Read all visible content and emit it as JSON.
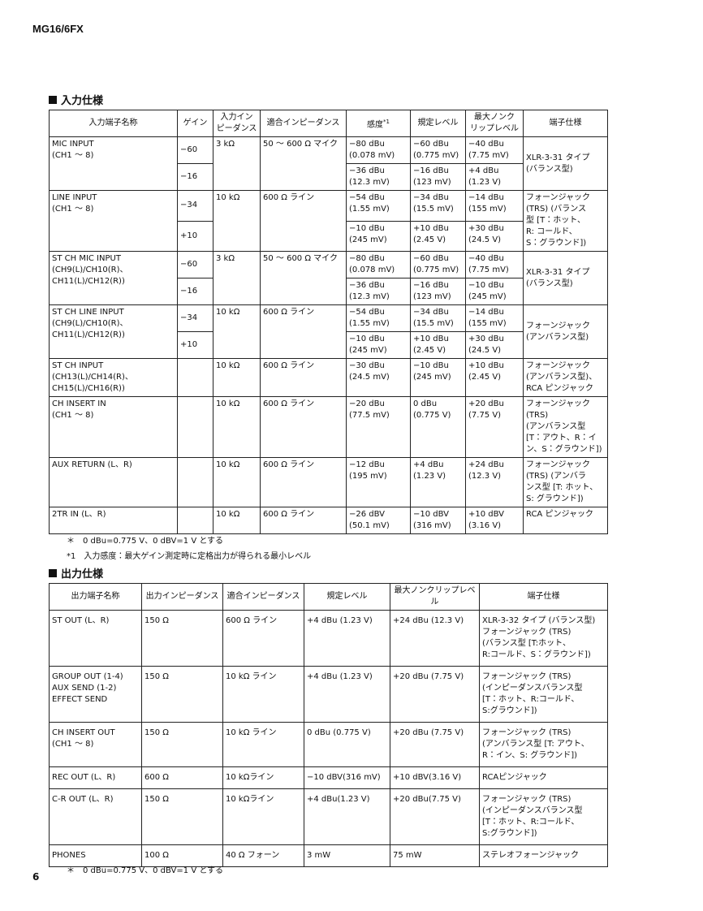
{
  "header": "MG16/6FX",
  "input_section": {
    "title": "入力仕様",
    "headers": [
      "入力端子名称",
      "ゲイン",
      "入力イン\nピーダンス",
      "適合インピーダンス",
      "感度",
      "規定レベル",
      "最大ノンク\nリップレベル",
      "端子仕様"
    ],
    "sensitivity_mark": "*1",
    "rows": [
      {
        "name": "MIC INPUT\n(CH1 ～ 8)",
        "impedance": "3 kΩ",
        "suitable": "50 ～ 600 Ω マイク",
        "connector": "XLR-3-31 タイプ\n(バランス型)",
        "levels": [
          {
            "gain": "−60",
            "sensitivity": "−80 dBu\n(0.078 mV)",
            "nominal": "−60 dBu\n(0.775 mV)",
            "max": "−40 dBu\n(7.75 mV)"
          },
          {
            "gain": "−16",
            "sensitivity": "−36 dBu\n(12.3 mV)",
            "nominal": "−16 dBu\n(123 mV)",
            "max": "+4 dBu\n(1.23 V)"
          }
        ]
      },
      {
        "name": "LINE INPUT\n(CH1 ～ 8)",
        "impedance": "10 kΩ",
        "suitable": "600 Ω ライン",
        "connector": "フォーンジャック\n(TRS) (バランス\n型 [T：ホット、\nR: コールド、\nS：グラウンド])",
        "levels": [
          {
            "gain": "−34",
            "sensitivity": "−54 dBu\n(1.55 mV)",
            "nominal": "−34 dBu\n(15.5 mV)",
            "max": "−14 dBu\n(155 mV)"
          },
          {
            "gain": "+10",
            "sensitivity": "−10 dBu\n(245 mV)",
            "nominal": "+10 dBu\n(2.45 V)",
            "max": "+30 dBu\n(24.5 V)"
          }
        ]
      },
      {
        "name": "ST CH MIC INPUT\n(CH9(L)/CH10(R)、\nCH11(L)/CH12(R))",
        "impedance": "3 kΩ",
        "suitable": "50 ～ 600 Ω マイク",
        "connector": "XLR-3-31 タイプ\n(バランス型)",
        "levels": [
          {
            "gain": "−60",
            "sensitivity": "−80 dBu\n(0.078 mV)",
            "nominal": "−60 dBu\n(0.775 mV)",
            "max": "−40 dBu\n(7.75 mV)"
          },
          {
            "gain": "−16",
            "sensitivity": "−36 dBu\n(12.3 mV)",
            "nominal": "−16 dBu\n(123 mV)",
            "max": "−10 dBu\n(245 mV)"
          }
        ]
      },
      {
        "name": "ST CH LINE INPUT\n(CH9(L)/CH10(R)、\nCH11(L)/CH12(R))",
        "impedance": "10 kΩ",
        "suitable": "600 Ω ライン",
        "connector": "フォーンジャック\n(アンバランス型)",
        "levels": [
          {
            "gain": "−34",
            "sensitivity": "−54 dBu\n(1.55 mV)",
            "nominal": "−34 dBu\n(15.5 mV)",
            "max": "−14 dBu\n(155 mV)"
          },
          {
            "gain": "+10",
            "sensitivity": "−10 dBu\n(245 mV)",
            "nominal": "+10 dBu\n(2.45 V)",
            "max": "+30 dBu\n(24.5 V)"
          }
        ]
      },
      {
        "name": "ST CH INPUT\n(CH13(L)/CH14(R)、\nCH15(L)/CH16(R))",
        "impedance": "10 kΩ",
        "suitable": "600 Ω ライン",
        "connector": "フォーンジャック\n(アンバランス型)、\nRCA ピンジャック",
        "levels": [
          {
            "gain": null,
            "sensitivity": "−30 dBu\n(24.5 mV)",
            "nominal": "−10 dBu\n(245 mV)",
            "max": "+10 dBu\n(2.45 V)"
          }
        ]
      },
      {
        "name": "CH INSERT IN\n(CH1 ～ 8)",
        "impedance": "10 kΩ",
        "suitable": "600 Ω ライン",
        "connector": "フォーンジャック\n(TRS)\n(アンバランス型\n[T：アウト、R：イ\nン、S：グラウンド])",
        "levels": [
          {
            "gain": null,
            "sensitivity": "−20 dBu\n(77.5 mV)",
            "nominal": "0 dBu\n(0.775 V)",
            "max": "+20 dBu\n(7.75 V)"
          }
        ]
      },
      {
        "name": "AUX RETURN (L、R)",
        "impedance": "10 kΩ",
        "suitable": "600 Ω ライン",
        "connector": "フォーンジャック\n(TRS) (アンバラ\nンス型 [T: ホット、\nS: グラウンド])",
        "levels": [
          {
            "gain": null,
            "sensitivity": "−12 dBu\n(195 mV)",
            "nominal": "+4 dBu\n(1.23 V)",
            "max": "+24 dBu\n(12.3 V)"
          }
        ]
      },
      {
        "name": "2TR IN (L、R)",
        "impedance": "10 kΩ",
        "suitable": "600 Ω ライン",
        "connector": "RCA ピンジャック",
        "levels": [
          {
            "gain": null,
            "sensitivity": "−26 dBV\n(50.1 mV)",
            "nominal": "−10 dBV\n(316 mV)",
            "max": "+10 dBV\n(3.16 V)"
          }
        ]
      }
    ],
    "notes": [
      "＊　0 dBu=0.775 V、0 dBV=1 V とする",
      "*1　入力感度：最大ゲイン測定時に定格出力が得られる最小レベル"
    ]
  },
  "output_section": {
    "title": "出力仕様",
    "headers": [
      "出力端子名称",
      "出力インピーダンス",
      "適合インピーダンス",
      "規定レベル",
      "最大ノンクリップレベル",
      "端子仕様"
    ],
    "rows": [
      [
        "ST OUT (L、R)",
        "150 Ω",
        "600 Ω ライン",
        "+4 dBu (1.23 V)",
        "+24 dBu (12.3 V)",
        "XLR-3-32 タイプ (バランス型)\nフォーンジャック (TRS)\n(バランス型 [T:ホット、\nR:コールド、S：グラウンド])"
      ],
      [
        "GROUP OUT (1-4)\nAUX SEND (1-2)\nEFFECT SEND",
        "150 Ω",
        "10 kΩ ライン",
        "+4 dBu (1.23 V)",
        "+20 dBu (7.75 V)",
        "フォーンジャック (TRS)\n(インピーダンスバランス型\n[T：ホット、R:コールド、\nS:グラウンド])"
      ],
      [
        "CH INSERT OUT\n(CH1 ～ 8)",
        "150 Ω",
        "10 kΩ ライン",
        "0 dBu (0.775 V)",
        "+20 dBu (7.75 V)",
        "フォーンジャック (TRS)\n(アンバランス型 [T: アウト、\nR：イン、S: グラウンド])"
      ],
      [
        "REC OUT (L、R)",
        "600 Ω",
        "10 kΩライン",
        "−10 dBV(316 mV)",
        "+10 dBV(3.16 V)",
        "RCAピンジャック"
      ],
      [
        "C-R OUT (L、R)",
        "150 Ω",
        "10 kΩライン",
        "+4 dBu(1.23 V)",
        "+20 dBu(7.75 V)",
        "フォーンジャック (TRS)\n(インピーダンスバランス型\n[T：ホット、R:コールド、\nS:グラウンド])"
      ],
      [
        "PHONES",
        "100 Ω",
        "40 Ω フォーン",
        "3 mW",
        "75 mW",
        "ステレオフォーンジャック"
      ]
    ],
    "note": "＊　0 dBu=0.775 V、0 dBV=1 V とする"
  },
  "page_number": "6"
}
